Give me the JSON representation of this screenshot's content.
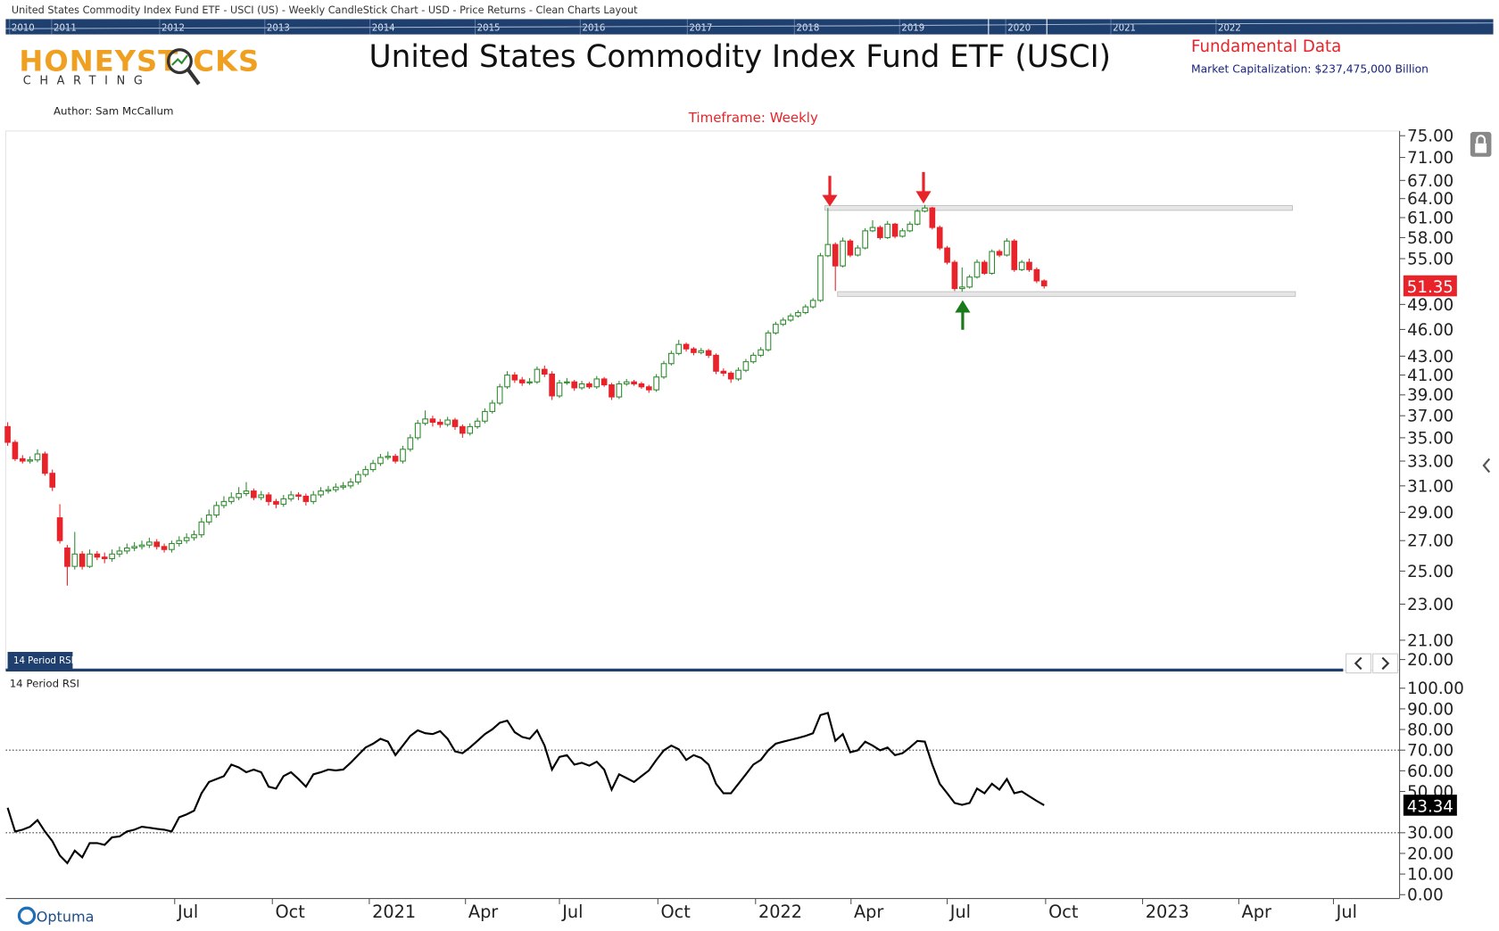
{
  "header": {
    "top_bar": "United States Commodity Index Fund ETF - USCI (US) - Weekly CandleStick Chart - USD - Price Returns - Clean Charts Layout",
    "navigator_years": [
      "2010",
      "2011",
      "2012",
      "2013",
      "2014",
      "2015",
      "2016",
      "2017",
      "2018",
      "2019",
      "2020",
      "2021",
      "2022"
    ],
    "logo_a": "HONEYST",
    "logo_b": "CKS",
    "logo_sub": "CHARTING",
    "title": "United States Commodity Index Fund ETF (USCI)",
    "fundamental": "Fundamental Data",
    "market_cap": "Market Capitalization: $237,475,000 Billion",
    "author": "Author: Sam McCallum",
    "timeframe": "Timeframe: Weekly"
  },
  "chart_data": [
    {
      "type": "candlestick",
      "log_scale": true,
      "up_color": "#2e8b2e",
      "down_color": "#e8232a",
      "xlim": [
        0,
        186
      ],
      "ylim": [
        20,
        75
      ],
      "yticks": [
        {
          "value": 75,
          "label": "75.00"
        },
        {
          "value": 71,
          "label": "71.00"
        },
        {
          "value": 67,
          "label": "67.00"
        },
        {
          "value": 64,
          "label": "64.00"
        },
        {
          "value": 61,
          "label": "61.00"
        },
        {
          "value": 58,
          "label": "58.00"
        },
        {
          "value": 55,
          "label": "55.00"
        },
        {
          "value": 49,
          "label": "49.00"
        },
        {
          "value": 46,
          "label": "46.00"
        },
        {
          "value": 43,
          "label": "43.00"
        },
        {
          "value": 41,
          "label": "41.00"
        },
        {
          "value": 39,
          "label": "39.00"
        },
        {
          "value": 37,
          "label": "37.00"
        },
        {
          "value": 35,
          "label": "35.00"
        },
        {
          "value": 33,
          "label": "33.00"
        },
        {
          "value": 31,
          "label": "31.00"
        },
        {
          "value": 29,
          "label": "29.00"
        },
        {
          "value": 27,
          "label": "27.00"
        },
        {
          "value": 25,
          "label": "25.00"
        },
        {
          "value": 23,
          "label": "23.00"
        },
        {
          "value": 21,
          "label": "21.00"
        },
        {
          "value": 20,
          "label": "20.00"
        }
      ],
      "levels": [
        {
          "value": 62.5,
          "from": 109.6,
          "to": 172.3
        },
        {
          "value": 50.3,
          "from": 111.3,
          "to": 172.7
        }
      ],
      "candles": [
        [
          36.0,
          36.4,
          34.3,
          34.6
        ],
        [
          34.6,
          34.8,
          33.0,
          33.2
        ],
        [
          33.2,
          33.5,
          32.8,
          33.0
        ],
        [
          33.0,
          33.4,
          32.8,
          33.1
        ],
        [
          33.1,
          34.0,
          32.9,
          33.6
        ],
        [
          33.6,
          33.8,
          31.8,
          32.0
        ],
        [
          32.0,
          32.3,
          30.6,
          30.9
        ],
        [
          28.6,
          29.6,
          26.8,
          27.0
        ],
        [
          26.5,
          26.7,
          24.1,
          25.3
        ],
        [
          25.3,
          27.6,
          25.1,
          26.1
        ],
        [
          26.1,
          26.3,
          25.1,
          25.3
        ],
        [
          25.3,
          26.4,
          25.2,
          26.1
        ],
        [
          26.1,
          26.3,
          25.7,
          25.9
        ],
        [
          25.9,
          26.2,
          25.5,
          25.8
        ],
        [
          25.8,
          26.4,
          25.6,
          26.1
        ],
        [
          26.1,
          26.6,
          25.9,
          26.3
        ],
        [
          26.3,
          26.8,
          26.1,
          26.5
        ],
        [
          26.5,
          26.9,
          26.3,
          26.6
        ],
        [
          26.6,
          27.0,
          26.4,
          26.7
        ],
        [
          26.7,
          27.2,
          26.5,
          26.9
        ],
        [
          26.9,
          27.1,
          26.4,
          26.6
        ],
        [
          26.6,
          26.8,
          26.2,
          26.4
        ],
        [
          26.4,
          27.0,
          26.2,
          26.8
        ],
        [
          26.8,
          27.3,
          26.6,
          27.0
        ],
        [
          27.0,
          27.5,
          26.8,
          27.2
        ],
        [
          27.2,
          27.7,
          27.0,
          27.4
        ],
        [
          27.4,
          28.6,
          27.2,
          28.3
        ],
        [
          28.3,
          29.2,
          28.1,
          28.8
        ],
        [
          28.8,
          29.8,
          28.6,
          29.5
        ],
        [
          29.5,
          30.2,
          29.3,
          29.8
        ],
        [
          29.8,
          30.5,
          29.6,
          30.1
        ],
        [
          30.1,
          30.9,
          29.9,
          30.4
        ],
        [
          30.4,
          31.3,
          30.2,
          30.6
        ],
        [
          30.6,
          30.8,
          29.9,
          30.1
        ],
        [
          30.1,
          30.6,
          29.9,
          30.3
        ],
        [
          30.3,
          30.5,
          29.5,
          29.8
        ],
        [
          29.8,
          30.0,
          29.3,
          29.6
        ],
        [
          29.6,
          30.3,
          29.4,
          30.0
        ],
        [
          30.0,
          30.6,
          29.8,
          30.3
        ],
        [
          30.3,
          30.5,
          29.9,
          30.2
        ],
        [
          30.2,
          30.4,
          29.5,
          29.8
        ],
        [
          29.8,
          30.6,
          29.6,
          30.3
        ],
        [
          30.3,
          30.9,
          30.1,
          30.6
        ],
        [
          30.6,
          31.0,
          30.4,
          30.7
        ],
        [
          30.7,
          31.2,
          30.5,
          30.9
        ],
        [
          30.9,
          31.3,
          30.7,
          31.0
        ],
        [
          31.0,
          31.6,
          30.8,
          31.3
        ],
        [
          31.3,
          32.2,
          31.1,
          31.9
        ],
        [
          31.9,
          32.6,
          31.7,
          32.3
        ],
        [
          32.3,
          33.1,
          32.1,
          32.8
        ],
        [
          32.8,
          33.6,
          32.6,
          33.3
        ],
        [
          33.3,
          33.8,
          33.1,
          33.4
        ],
        [
          33.4,
          33.6,
          32.8,
          33.0
        ],
        [
          33.0,
          34.3,
          32.8,
          34.0
        ],
        [
          34.0,
          35.3,
          33.8,
          35.0
        ],
        [
          35.0,
          36.6,
          34.8,
          36.3
        ],
        [
          36.3,
          37.5,
          36.1,
          36.7
        ],
        [
          36.7,
          37.0,
          36.0,
          36.4
        ],
        [
          36.4,
          36.7,
          35.9,
          36.2
        ],
        [
          36.2,
          36.9,
          36.0,
          36.6
        ],
        [
          36.6,
          36.8,
          35.7,
          36.0
        ],
        [
          36.0,
          36.2,
          35.0,
          35.4
        ],
        [
          35.4,
          36.3,
          35.2,
          36.0
        ],
        [
          36.0,
          36.8,
          35.8,
          36.5
        ],
        [
          36.5,
          37.7,
          36.3,
          37.4
        ],
        [
          37.4,
          38.5,
          37.2,
          38.2
        ],
        [
          38.2,
          40.1,
          38.0,
          39.8
        ],
        [
          39.8,
          41.4,
          39.6,
          41.0
        ],
        [
          41.0,
          41.3,
          40.2,
          40.5
        ],
        [
          40.5,
          40.8,
          39.9,
          40.2
        ],
        [
          40.2,
          40.7,
          40.0,
          40.3
        ],
        [
          40.3,
          41.9,
          40.1,
          41.6
        ],
        [
          41.6,
          42.0,
          40.8,
          41.1
        ],
        [
          41.1,
          41.4,
          38.5,
          38.9
        ],
        [
          38.9,
          40.5,
          38.7,
          40.2
        ],
        [
          40.2,
          40.7,
          40.0,
          40.3
        ],
        [
          40.3,
          40.5,
          39.4,
          39.7
        ],
        [
          39.7,
          40.4,
          39.5,
          40.1
        ],
        [
          40.1,
          40.3,
          39.6,
          39.8
        ],
        [
          39.8,
          40.9,
          39.6,
          40.6
        ],
        [
          40.6,
          40.8,
          39.8,
          40.0
        ],
        [
          40.0,
          40.2,
          38.5,
          38.8
        ],
        [
          38.8,
          40.4,
          38.6,
          40.1
        ],
        [
          40.1,
          40.6,
          39.9,
          40.3
        ],
        [
          40.3,
          40.5,
          39.9,
          40.1
        ],
        [
          40.1,
          40.3,
          39.6,
          39.8
        ],
        [
          39.8,
          40.0,
          39.2,
          39.5
        ],
        [
          39.5,
          41.1,
          39.3,
          40.8
        ],
        [
          40.8,
          42.5,
          40.6,
          42.2
        ],
        [
          42.2,
          43.6,
          42.0,
          43.3
        ],
        [
          43.3,
          44.8,
          43.1,
          44.3
        ],
        [
          44.3,
          44.5,
          43.5,
          43.8
        ],
        [
          43.8,
          44.0,
          43.1,
          43.4
        ],
        [
          43.4,
          43.9,
          43.2,
          43.6
        ],
        [
          43.6,
          43.8,
          42.8,
          43.1
        ],
        [
          43.1,
          43.3,
          41.1,
          41.4
        ],
        [
          41.4,
          41.7,
          40.9,
          41.2
        ],
        [
          41.2,
          41.4,
          40.2,
          40.6
        ],
        [
          40.6,
          41.8,
          40.4,
          41.5
        ],
        [
          41.5,
          42.7,
          41.3,
          42.4
        ],
        [
          42.4,
          43.4,
          42.2,
          43.1
        ],
        [
          43.1,
          44.0,
          42.9,
          43.7
        ],
        [
          43.7,
          45.9,
          43.5,
          45.6
        ],
        [
          45.6,
          46.9,
          45.4,
          46.6
        ],
        [
          46.6,
          47.4,
          46.4,
          47.1
        ],
        [
          47.1,
          47.9,
          46.9,
          47.6
        ],
        [
          47.6,
          48.3,
          47.4,
          48.0
        ],
        [
          48.0,
          49.0,
          47.8,
          48.7
        ],
        [
          48.7,
          49.8,
          48.5,
          49.5
        ],
        [
          49.5,
          55.8,
          49.3,
          55.4
        ],
        [
          55.4,
          62.5,
          55.2,
          57.0
        ],
        [
          57.0,
          57.3,
          50.7,
          54.0
        ],
        [
          54.0,
          58.0,
          53.8,
          57.5
        ],
        [
          57.5,
          57.8,
          55.2,
          55.5
        ],
        [
          55.5,
          56.9,
          55.3,
          56.5
        ],
        [
          56.5,
          59.4,
          56.3,
          59.0
        ],
        [
          59.0,
          60.6,
          58.8,
          59.5
        ],
        [
          59.5,
          59.8,
          57.7,
          58.0
        ],
        [
          58.0,
          60.5,
          57.8,
          60.0
        ],
        [
          60.0,
          60.2,
          57.9,
          58.2
        ],
        [
          58.2,
          59.4,
          58.0,
          59.0
        ],
        [
          59.0,
          60.4,
          58.8,
          60.0
        ],
        [
          60.0,
          62.3,
          59.8,
          62.0
        ],
        [
          62.0,
          63.0,
          61.8,
          62.5
        ],
        [
          62.5,
          62.7,
          59.2,
          59.5
        ],
        [
          59.5,
          59.8,
          56.2,
          56.5
        ],
        [
          56.5,
          56.8,
          54.2,
          54.5
        ],
        [
          54.5,
          54.8,
          50.7,
          51.0
        ],
        [
          51.0,
          53.8,
          50.6,
          51.2
        ],
        [
          51.2,
          52.8,
          51.0,
          52.5
        ],
        [
          52.5,
          54.9,
          52.3,
          54.5
        ],
        [
          54.5,
          54.8,
          52.8,
          53.0
        ],
        [
          53.0,
          56.3,
          52.8,
          56.0
        ],
        [
          56.0,
          56.3,
          55.2,
          55.5
        ],
        [
          55.5,
          57.9,
          55.3,
          57.5
        ],
        [
          57.5,
          57.8,
          53.2,
          53.5
        ],
        [
          53.5,
          54.8,
          53.3,
          54.5
        ],
        [
          54.5,
          55.0,
          53.2,
          53.5
        ],
        [
          53.5,
          53.8,
          51.7,
          52.0
        ],
        [
          52.0,
          52.2,
          51.0,
          51.35
        ]
      ]
    },
    {
      "type": "line",
      "title": "14 Period RSI",
      "tab_label": "14 Period RSI",
      "color": "#000000",
      "xlim": [
        0,
        186
      ],
      "ylim": [
        0,
        100
      ],
      "levels": [
        70,
        30
      ],
      "yticks": [
        {
          "value": 100,
          "label": "100.00"
        },
        {
          "value": 90,
          "label": "90.00"
        },
        {
          "value": 80,
          "label": "80.00"
        },
        {
          "value": 70,
          "label": "70.00"
        },
        {
          "value": 60,
          "label": "60.00"
        },
        {
          "value": 50,
          "label": "50.00"
        },
        {
          "value": 30,
          "label": "30.00"
        },
        {
          "value": 20,
          "label": "20.00"
        },
        {
          "value": 10,
          "label": "10.00"
        },
        {
          "value": 0,
          "label": "0.00"
        }
      ],
      "xticks": [
        {
          "value": 22.4,
          "label": "Jul"
        },
        {
          "value": 35.5,
          "label": "Oct"
        },
        {
          "value": 48.5,
          "label": "2021"
        },
        {
          "value": 61.4,
          "label": "Apr"
        },
        {
          "value": 74.0,
          "label": "Jul"
        },
        {
          "value": 87.2,
          "label": "Oct"
        },
        {
          "value": 100.3,
          "label": "2022"
        },
        {
          "value": 113.1,
          "label": "Apr"
        },
        {
          "value": 126.0,
          "label": "Jul"
        },
        {
          "value": 139.2,
          "label": "Oct"
        },
        {
          "value": 152.2,
          "label": "2023"
        },
        {
          "value": 165.1,
          "label": "Apr"
        },
        {
          "value": 177.8,
          "label": "Jul"
        }
      ],
      "values": [
        42.1,
        30.6,
        31.5,
        32.9,
        36.1,
        30.6,
        25.9,
        19.0,
        15.3,
        21.3,
        18.1,
        25.0,
        25.0,
        24.1,
        27.8,
        28.2,
        30.6,
        31.5,
        32.9,
        32.4,
        31.9,
        31.5,
        30.6,
        37.5,
        38.9,
        40.7,
        49.1,
        54.6,
        56.0,
        57.4,
        63.0,
        61.6,
        59.3,
        60.6,
        59.3,
        52.3,
        51.4,
        57.4,
        59.3,
        56.0,
        52.3,
        58.3,
        59.3,
        60.6,
        60.2,
        60.6,
        63.9,
        67.6,
        71.3,
        73.1,
        75.5,
        74.1,
        67.6,
        72.2,
        76.9,
        79.6,
        78.2,
        77.8,
        79.2,
        75.5,
        69.4,
        68.5,
        71.3,
        74.5,
        77.8,
        80.1,
        83.3,
        84.3,
        78.7,
        76.4,
        75.5,
        79.6,
        72.2,
        60.6,
        66.7,
        67.6,
        63.0,
        63.9,
        62.5,
        64.4,
        60.6,
        50.9,
        58.3,
        56.5,
        54.6,
        57.4,
        60.2,
        65.3,
        69.9,
        72.2,
        70.4,
        65.3,
        67.6,
        66.2,
        63.0,
        53.7,
        49.1,
        49.1,
        53.7,
        58.3,
        63.0,
        65.3,
        69.9,
        73.1,
        74.1,
        75.0,
        75.9,
        76.9,
        78.2,
        87.0,
        88.0,
        74.5,
        77.8,
        69.0,
        69.9,
        74.1,
        72.2,
        69.9,
        71.3,
        67.6,
        68.5,
        71.3,
        74.5,
        74.1,
        63.0,
        53.7,
        49.1,
        44.4,
        43.5,
        44.4,
        51.4,
        49.1,
        53.7,
        50.9,
        56.0,
        49.1,
        50.0,
        47.7,
        45.4,
        43.34
      ]
    }
  ],
  "footer": {
    "brand": "Optuma"
  }
}
